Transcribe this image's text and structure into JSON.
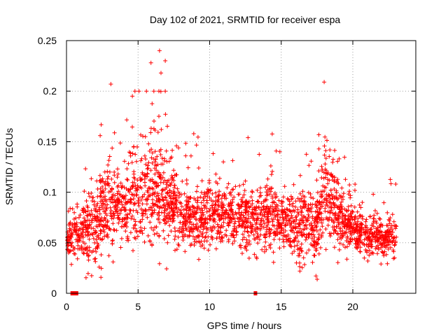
{
  "chart_data": {
    "type": "scatter",
    "title": "Day 102 of 2021, SRMTID for receiver espa",
    "xlabel": "GPS time / hours",
    "ylabel": "SRMTID / TECUs",
    "xlim": [
      0,
      24.4
    ],
    "ylim": [
      0,
      0.25
    ],
    "xticks": [
      0,
      5,
      10,
      15,
      20
    ],
    "xtick_labels": [
      "0",
      "5",
      "10",
      "15",
      "20"
    ],
    "yticks": [
      0,
      0.05,
      0.1,
      0.15,
      0.2,
      0.25
    ],
    "ytick_labels": [
      "0",
      "0.05",
      "0.1",
      "0.15",
      "0.2",
      "0.25"
    ],
    "grid": true,
    "marker": "+",
    "color": "#ff0000",
    "series_profile": {
      "name": "SRMTID",
      "profile_x": [
        0,
        0.3,
        0.6,
        1.0,
        1.5,
        2.0,
        2.5,
        3.0,
        3.5,
        4.0,
        4.5,
        5.0,
        5.5,
        6.0,
        6.5,
        7.0,
        7.5,
        8.0,
        9.0,
        10.0,
        11.0,
        12.0,
        13.0,
        14.0,
        15.0,
        16.0,
        16.8,
        17.5,
        18.0,
        18.5,
        19.0,
        20.0,
        21.0,
        22.0,
        23.0
      ],
      "profile_mean": [
        0.05,
        0.055,
        0.06,
        0.06,
        0.065,
        0.07,
        0.08,
        0.09,
        0.085,
        0.08,
        0.085,
        0.09,
        0.09,
        0.1,
        0.105,
        0.1,
        0.085,
        0.075,
        0.075,
        0.08,
        0.075,
        0.075,
        0.07,
        0.075,
        0.07,
        0.065,
        0.07,
        0.06,
        0.1,
        0.09,
        0.075,
        0.065,
        0.055,
        0.055,
        0.055
      ],
      "profile_spread": [
        0.015,
        0.02,
        0.02,
        0.025,
        0.03,
        0.035,
        0.04,
        0.045,
        0.035,
        0.035,
        0.045,
        0.045,
        0.045,
        0.05,
        0.055,
        0.045,
        0.03,
        0.025,
        0.025,
        0.03,
        0.025,
        0.025,
        0.025,
        0.03,
        0.025,
        0.025,
        0.035,
        0.03,
        0.045,
        0.04,
        0.025,
        0.02,
        0.02,
        0.018,
        0.018
      ],
      "peaks": [
        {
          "x": 6.5,
          "y": 0.24
        },
        {
          "x": 6.9,
          "y": 0.23
        },
        {
          "x": 5.9,
          "y": 0.228
        },
        {
          "x": 6.6,
          "y": 0.218
        },
        {
          "x": 3.1,
          "y": 0.207
        },
        {
          "x": 18.0,
          "y": 0.209
        },
        {
          "x": 6.1,
          "y": 0.2
        },
        {
          "x": 6.9,
          "y": 0.2
        },
        {
          "x": 4.6,
          "y": 0.195
        },
        {
          "x": 23.0,
          "y": 0.108
        }
      ]
    },
    "markers_at_zero_x": [
      0.4,
      0.5,
      0.6,
      0.7,
      13.2
    ]
  }
}
